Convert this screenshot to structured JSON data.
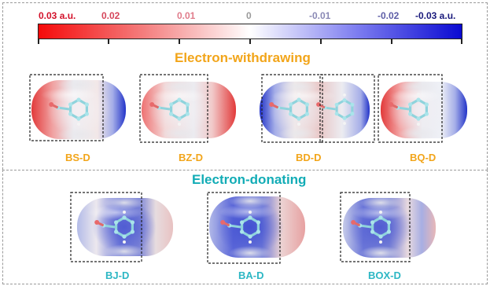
{
  "colorbar": {
    "labels": [
      "0.03 a.u.",
      "0.02",
      "0.01",
      "0",
      "-0.01",
      "-0.02",
      "-0.03 a.u."
    ],
    "gradient_colors": [
      "#f50a0a",
      "#f47e7e",
      "#ffffff",
      "#7e7ef0",
      "#0a0ad2"
    ]
  },
  "sections": {
    "withdrawing": {
      "title": "Electron-withdrawing",
      "molecules": [
        {
          "label": "BS-D",
          "tail": "strong-negative"
        },
        {
          "label": "BZ-D",
          "tail": "positive"
        },
        {
          "label": "BD-D",
          "tail": "dimer"
        },
        {
          "label": "BQ-D",
          "tail": "strong-negative"
        }
      ]
    },
    "donating": {
      "title": "Electron-donating",
      "molecules": [
        {
          "label": "BJ-D",
          "tail": "neutral"
        },
        {
          "label": "BA-D",
          "tail": "positive"
        },
        {
          "label": "BOX-D",
          "tail": "slightly-negative"
        }
      ]
    }
  }
}
